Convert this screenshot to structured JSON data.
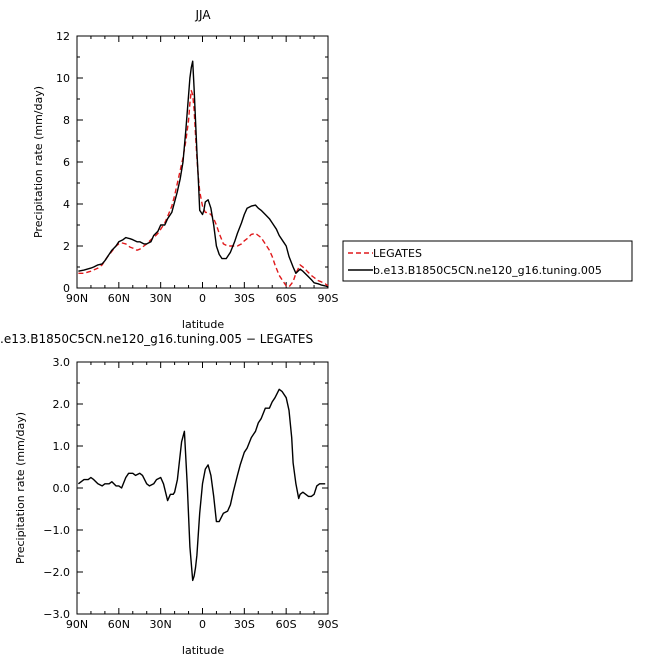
{
  "chart_data": [
    {
      "type": "line",
      "title": "JJA",
      "xlabel": "latitude",
      "ylabel": "Precipitation rate  (mm/day)",
      "xlim": [
        -90,
        90
      ],
      "ylim": [
        0,
        12
      ],
      "xtick_values": [
        -90,
        -60,
        -30,
        0,
        30,
        60,
        90
      ],
      "xtick_labels": [
        "90N",
        "60N",
        "30N",
        "0",
        "30S",
        "60S",
        "90S"
      ],
      "ytick_values": [
        0,
        2,
        4,
        6,
        8,
        10,
        12
      ],
      "ytick_labels": [
        "0",
        "2",
        "4",
        "6",
        "8",
        "10",
        "12"
      ],
      "grid": false,
      "legend_position": "right",
      "series": [
        {
          "name": "LEGATES",
          "color": "#e0191b",
          "dash": "dashed",
          "x": [
            -89,
            -85,
            -80,
            -75,
            -72,
            -70,
            -68,
            -65,
            -62,
            -60,
            -58,
            -55,
            -52,
            -50,
            -47,
            -45,
            -42,
            -40,
            -37,
            -35,
            -32,
            -30,
            -27,
            -25,
            -22,
            -20,
            -18,
            -16,
            -14,
            -12,
            -10,
            -9,
            -8,
            -7,
            -6,
            -5,
            -4,
            -3,
            -2,
            0,
            2,
            4,
            6,
            8,
            10,
            12,
            15,
            18,
            20,
            22,
            25,
            28,
            30,
            32,
            35,
            38,
            40,
            42,
            45,
            48,
            50,
            52,
            55,
            58,
            60,
            62,
            65,
            67,
            70,
            73,
            75,
            78,
            80,
            83,
            85,
            88,
            90
          ],
          "y": [
            0.7,
            0.7,
            0.8,
            0.95,
            1.1,
            1.3,
            1.5,
            1.75,
            2.0,
            2.1,
            2.15,
            2.1,
            1.95,
            1.9,
            1.8,
            1.85,
            2.0,
            2.1,
            2.3,
            2.4,
            2.6,
            2.8,
            3.1,
            3.4,
            3.9,
            4.4,
            5.0,
            5.6,
            6.2,
            7.0,
            8.0,
            8.8,
            9.4,
            9.2,
            8.5,
            7.3,
            6.2,
            5.3,
            4.6,
            3.9,
            3.6,
            3.6,
            3.5,
            3.3,
            3.0,
            2.6,
            2.1,
            2.0,
            2.0,
            2.0,
            2.0,
            2.1,
            2.25,
            2.35,
            2.55,
            2.6,
            2.5,
            2.4,
            2.1,
            1.8,
            1.5,
            1.1,
            0.6,
            0.3,
            0.1,
            0.05,
            0.3,
            0.7,
            1.1,
            0.95,
            0.8,
            0.6,
            0.5,
            0.35,
            0.3,
            0.2,
            0.1
          ]
        },
        {
          "name": "b.e13.B1850C5CN.ne120_g16.tuning.005",
          "color": "#000000",
          "dash": "solid",
          "x": [
            -89,
            -85,
            -80,
            -78,
            -75,
            -72,
            -70,
            -67,
            -65,
            -62,
            -60,
            -57,
            -55,
            -52,
            -50,
            -47,
            -45,
            -42,
            -40,
            -37,
            -35,
            -32,
            -30,
            -27,
            -25,
            -22,
            -20,
            -18,
            -16,
            -14,
            -12,
            -10,
            -9,
            -8,
            -7,
            -6,
            -5,
            -4,
            -3,
            -2,
            -1,
            0,
            1,
            2,
            4,
            6,
            8,
            10,
            12,
            14,
            17,
            20,
            23,
            25,
            28,
            30,
            32,
            35,
            38,
            40,
            42,
            45,
            48,
            50,
            53,
            55,
            58,
            60,
            62,
            65,
            67,
            70,
            72,
            75,
            78,
            80,
            83,
            85,
            88,
            90
          ],
          "y": [
            0.8,
            0.85,
            0.95,
            1.0,
            1.1,
            1.15,
            1.3,
            1.6,
            1.8,
            2.0,
            2.2,
            2.3,
            2.4,
            2.35,
            2.3,
            2.2,
            2.2,
            2.1,
            2.1,
            2.2,
            2.5,
            2.7,
            3.0,
            3.0,
            3.3,
            3.6,
            4.1,
            4.6,
            5.2,
            6.0,
            7.5,
            9.2,
            10.0,
            10.5,
            10.8,
            9.5,
            8.0,
            6.5,
            5.2,
            3.7,
            3.6,
            3.5,
            3.7,
            4.1,
            4.2,
            3.8,
            3.0,
            2.0,
            1.6,
            1.4,
            1.4,
            1.7,
            2.2,
            2.6,
            3.1,
            3.5,
            3.8,
            3.9,
            3.95,
            3.8,
            3.7,
            3.5,
            3.3,
            3.1,
            2.8,
            2.5,
            2.2,
            2.0,
            1.5,
            1.0,
            0.7,
            0.9,
            0.8,
            0.6,
            0.4,
            0.25,
            0.2,
            0.15,
            0.1,
            0.05
          ]
        }
      ]
    },
    {
      "type": "line",
      "title": ".e13.B1850C5CN.ne120_g16.tuning.005  −  LEGATES",
      "xlabel": "latitude",
      "ylabel": "Precipitation rate  (mm/day)",
      "xlim": [
        -90,
        90
      ],
      "ylim": [
        -3,
        3
      ],
      "xtick_values": [
        -90,
        -60,
        -30,
        0,
        30,
        60,
        90
      ],
      "xtick_labels": [
        "90N",
        "60N",
        "30N",
        "0",
        "30S",
        "60S",
        "90S"
      ],
      "ytick_values": [
        -3,
        -2,
        -1,
        0,
        1,
        2,
        3
      ],
      "ytick_labels": [
        "−3.0",
        "−2.0",
        "−1.0",
        "0.0",
        "1.0",
        "2.0",
        "3.0"
      ],
      "grid": false,
      "series": [
        {
          "color": "#000000",
          "dash": "solid",
          "x": [
            -89,
            -87,
            -85,
            -82,
            -80,
            -78,
            -75,
            -72,
            -70,
            -67,
            -65,
            -62,
            -60,
            -58,
            -55,
            -53,
            -50,
            -48,
            -45,
            -43,
            -40,
            -38,
            -35,
            -33,
            -30,
            -28,
            -25,
            -23,
            -21,
            -20,
            -18,
            -15,
            -13,
            -11,
            -9,
            -7,
            -6,
            -5,
            -4,
            -3,
            -2,
            0,
            2,
            4,
            6,
            8,
            10,
            12,
            15,
            18,
            20,
            22,
            25,
            27,
            30,
            32,
            35,
            38,
            40,
            42,
            45,
            48,
            50,
            52,
            55,
            57,
            60,
            62,
            64,
            65,
            67,
            69,
            70,
            72,
            74,
            76,
            78,
            80,
            82,
            84,
            86,
            88
          ],
          "y": [
            0.1,
            0.15,
            0.2,
            0.2,
            0.25,
            0.2,
            0.1,
            0.05,
            0.1,
            0.1,
            0.15,
            0.05,
            0.05,
            0.0,
            0.25,
            0.35,
            0.35,
            0.3,
            0.35,
            0.3,
            0.1,
            0.05,
            0.1,
            0.2,
            0.25,
            0.1,
            -0.3,
            -0.15,
            -0.15,
            -0.1,
            0.2,
            1.1,
            1.35,
            0.1,
            -1.4,
            -2.2,
            -2.1,
            -1.9,
            -1.6,
            -1.1,
            -0.6,
            0.1,
            0.45,
            0.55,
            0.3,
            -0.2,
            -0.8,
            -0.8,
            -0.6,
            -0.55,
            -0.4,
            -0.1,
            0.3,
            0.55,
            0.85,
            0.95,
            1.2,
            1.35,
            1.55,
            1.65,
            1.9,
            1.9,
            2.05,
            2.15,
            2.35,
            2.3,
            2.15,
            1.85,
            1.2,
            0.6,
            0.1,
            -0.25,
            -0.15,
            -0.1,
            -0.15,
            -0.2,
            -0.2,
            -0.15,
            0.05,
            0.1,
            0.1,
            0.1
          ]
        }
      ]
    }
  ]
}
